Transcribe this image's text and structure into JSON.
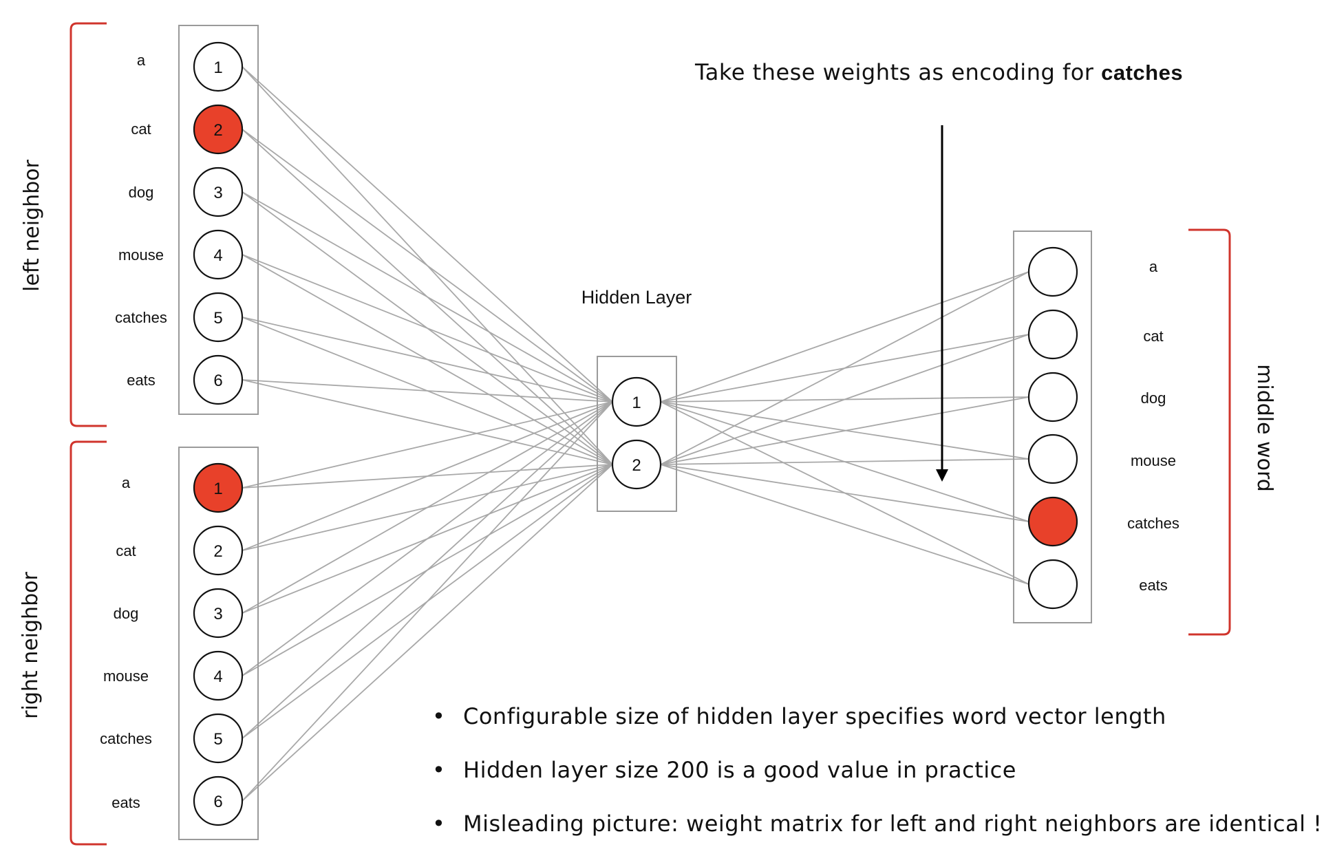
{
  "headline": {
    "prefix": "Take these weights as encoding for ",
    "bold": "catches"
  },
  "hidden_layer": {
    "title": "Hidden Layer",
    "nodes": [
      "1",
      "2"
    ]
  },
  "left_neighbor": {
    "label": "left neighbor",
    "words": [
      "a",
      "cat",
      "dog",
      "mouse",
      "catches",
      "eats"
    ],
    "numbers": [
      "1",
      "2",
      "3",
      "4",
      "5",
      "6"
    ],
    "active_index": 1
  },
  "right_neighbor": {
    "label": "right neighbor",
    "words": [
      "a",
      "cat",
      "dog",
      "mouse",
      "catches",
      "eats"
    ],
    "numbers": [
      "1",
      "2",
      "3",
      "4",
      "5",
      "6"
    ],
    "active_index": 0
  },
  "middle_word": {
    "label": "middle word",
    "words": [
      "a",
      "cat",
      "dog",
      "mouse",
      "catches",
      "eats"
    ],
    "active_index": 4
  },
  "bullets": [
    "Configurable size of hidden layer specifies word vector length",
    "Hidden layer size 200 is a good value in practice",
    "Misleading picture: weight matrix for left and right neighbors are identical !"
  ],
  "bullet_symbol": "•",
  "colors": {
    "active": "#e8412a",
    "bracket": "#d0342c",
    "edge": "#a8a8a8",
    "box": "#9a9a9a"
  }
}
